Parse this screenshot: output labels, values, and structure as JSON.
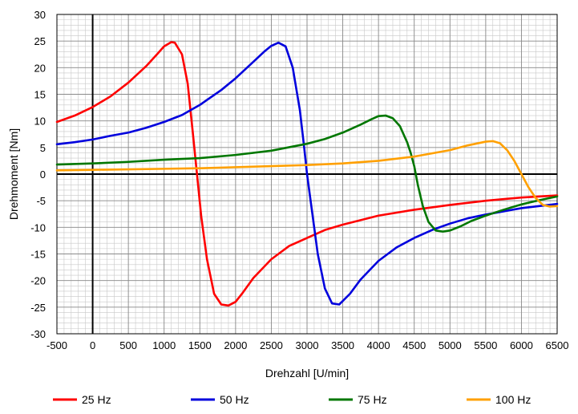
{
  "chart_data": {
    "type": "line",
    "title": "",
    "xlabel": "Drehzahl [U/min]",
    "ylabel": "Drehmoment [Nm]",
    "xlim": [
      -500,
      6500
    ],
    "ylim": [
      -30,
      30
    ],
    "x_major_step": 500,
    "y_major_step": 5,
    "x_minor_step": 100,
    "y_minor_step": 1,
    "grid": true,
    "legend_position": "bottom",
    "x_ticks": [
      "-500",
      "0",
      "500",
      "1000",
      "1500",
      "2000",
      "2500",
      "3000",
      "3500",
      "4000",
      "4500",
      "5000",
      "5500",
      "6000",
      "6500"
    ],
    "y_ticks": [
      "30",
      "25",
      "20",
      "15",
      "10",
      "5",
      "0",
      "-5",
      "-10",
      "-15",
      "-20",
      "-25",
      "-30"
    ],
    "series": [
      {
        "name": "25 Hz",
        "color": "#ff0000",
        "points": [
          [
            -500,
            9.8
          ],
          [
            -250,
            11
          ],
          [
            0,
            12.6
          ],
          [
            250,
            14.6
          ],
          [
            500,
            17.2
          ],
          [
            750,
            20.3
          ],
          [
            900,
            22.5
          ],
          [
            1000,
            24
          ],
          [
            1100,
            24.8
          ],
          [
            1150,
            24.7
          ],
          [
            1250,
            22.5
          ],
          [
            1330,
            17
          ],
          [
            1400,
            8
          ],
          [
            1460,
            0
          ],
          [
            1520,
            -8
          ],
          [
            1600,
            -16
          ],
          [
            1700,
            -22.5
          ],
          [
            1800,
            -24.5
          ],
          [
            1900,
            -24.7
          ],
          [
            2000,
            -24
          ],
          [
            2100,
            -22.3
          ],
          [
            2250,
            -19.5
          ],
          [
            2500,
            -16
          ],
          [
            2750,
            -13.5
          ],
          [
            3000,
            -12
          ],
          [
            3250,
            -10.5
          ],
          [
            3500,
            -9.5
          ],
          [
            4000,
            -7.8
          ],
          [
            4500,
            -6.7
          ],
          [
            5000,
            -5.8
          ],
          [
            5500,
            -5
          ],
          [
            6000,
            -4.4
          ],
          [
            6500,
            -4
          ]
        ]
      },
      {
        "name": "50 Hz",
        "color": "#0000dd",
        "points": [
          [
            -500,
            5.6
          ],
          [
            -250,
            6
          ],
          [
            0,
            6.5
          ],
          [
            250,
            7.2
          ],
          [
            500,
            7.8
          ],
          [
            750,
            8.7
          ],
          [
            1000,
            9.8
          ],
          [
            1250,
            11.1
          ],
          [
            1500,
            13
          ],
          [
            1800,
            15.8
          ],
          [
            2000,
            18
          ],
          [
            2200,
            20.5
          ],
          [
            2400,
            23
          ],
          [
            2500,
            24.1
          ],
          [
            2600,
            24.7
          ],
          [
            2700,
            24
          ],
          [
            2800,
            20
          ],
          [
            2900,
            12
          ],
          [
            2960,
            5
          ],
          [
            3000,
            0
          ],
          [
            3050,
            -5
          ],
          [
            3150,
            -15
          ],
          [
            3250,
            -21.5
          ],
          [
            3350,
            -24.3
          ],
          [
            3450,
            -24.5
          ],
          [
            3600,
            -22.5
          ],
          [
            3750,
            -19.8
          ],
          [
            4000,
            -16.3
          ],
          [
            4250,
            -13.8
          ],
          [
            4500,
            -12
          ],
          [
            4750,
            -10.5
          ],
          [
            5000,
            -9.3
          ],
          [
            5250,
            -8.3
          ],
          [
            5500,
            -7.6
          ],
          [
            5750,
            -7
          ],
          [
            6000,
            -6.4
          ],
          [
            6250,
            -6
          ],
          [
            6500,
            -5.6
          ]
        ]
      },
      {
        "name": "75 Hz",
        "color": "#007700",
        "points": [
          [
            -500,
            1.8
          ],
          [
            0,
            2
          ],
          [
            500,
            2.3
          ],
          [
            1000,
            2.7
          ],
          [
            1500,
            3
          ],
          [
            2000,
            3.6
          ],
          [
            2500,
            4.4
          ],
          [
            3000,
            5.7
          ],
          [
            3250,
            6.6
          ],
          [
            3500,
            7.8
          ],
          [
            3750,
            9.3
          ],
          [
            3900,
            10.3
          ],
          [
            4000,
            10.9
          ],
          [
            4100,
            11
          ],
          [
            4200,
            10.5
          ],
          [
            4300,
            9
          ],
          [
            4400,
            6
          ],
          [
            4450,
            4
          ],
          [
            4500,
            1.5
          ],
          [
            4550,
            -2
          ],
          [
            4620,
            -6
          ],
          [
            4700,
            -9
          ],
          [
            4800,
            -10.6
          ],
          [
            4900,
            -10.8
          ],
          [
            5000,
            -10.6
          ],
          [
            5150,
            -9.8
          ],
          [
            5300,
            -8.8
          ],
          [
            5500,
            -7.8
          ],
          [
            5750,
            -6.7
          ],
          [
            6000,
            -5.7
          ],
          [
            6250,
            -4.9
          ],
          [
            6500,
            -4.2
          ]
        ]
      },
      {
        "name": "100 Hz",
        "color": "#ffa000",
        "points": [
          [
            -500,
            0.7
          ],
          [
            0,
            0.8
          ],
          [
            500,
            0.9
          ],
          [
            1000,
            1
          ],
          [
            1500,
            1.1
          ],
          [
            2000,
            1.3
          ],
          [
            2500,
            1.5
          ],
          [
            3000,
            1.7
          ],
          [
            3500,
            2
          ],
          [
            4000,
            2.5
          ],
          [
            4500,
            3.3
          ],
          [
            4750,
            3.9
          ],
          [
            5000,
            4.5
          ],
          [
            5250,
            5.4
          ],
          [
            5500,
            6.1
          ],
          [
            5600,
            6.2
          ],
          [
            5700,
            5.8
          ],
          [
            5800,
            4.5
          ],
          [
            5900,
            2.5
          ],
          [
            6000,
            0
          ],
          [
            6100,
            -2.5
          ],
          [
            6200,
            -4.5
          ],
          [
            6300,
            -5.8
          ],
          [
            6400,
            -6.1
          ],
          [
            6500,
            -6
          ]
        ]
      }
    ]
  }
}
